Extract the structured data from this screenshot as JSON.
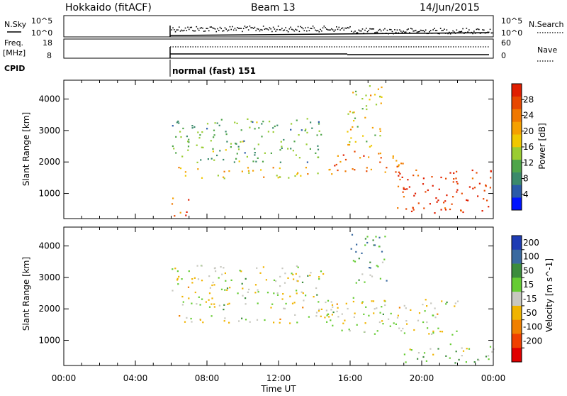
{
  "header": {
    "station": "Hokkaido (fitACF)",
    "beam": "Beam 13",
    "date": "14/Jun/2015"
  },
  "status_panels": {
    "nsky": {
      "label": "N.Sky",
      "tick_top": "10^5",
      "tick_bottom": "10^0",
      "right_label": "N.Search",
      "right_tick_top": "10^5",
      "right_tick_bottom": "10^0"
    },
    "freq": {
      "label_line1": "Freq.",
      "label_line2": "[MHz]",
      "tick_top": "18",
      "tick_bottom": "8",
      "right_label": "Nave",
      "right_tick_top": "60",
      "right_tick_bottom": "0"
    },
    "cpid": {
      "label": "CPID",
      "program": "normal (fast) 151"
    }
  },
  "chart_data": [
    {
      "type": "heatmap",
      "name": "power",
      "ylabel": "Slant Range [km]",
      "yticks": [
        "1000",
        "2000",
        "3000",
        "4000"
      ],
      "ylim": [
        200,
        4600
      ],
      "xlim": [
        0,
        24
      ],
      "colorbar_label": "Power [dB]",
      "colorbar_ticks": [
        "4",
        "8",
        "12",
        "16",
        "20",
        "24",
        "28"
      ],
      "colorbar_colors": [
        "#0014ff",
        "#2a5aa8",
        "#3b8a6b",
        "#4fa54a",
        "#9acd32",
        "#f0c800",
        "#f5a000",
        "#f07800",
        "#e84800",
        "#e01e00"
      ],
      "regions": [
        {
          "t0": 6.0,
          "t1": 15.0,
          "r0": 1500,
          "r1": 1850,
          "level": 0.62,
          "label_note": ""
        },
        {
          "t0": 6.0,
          "t1": 14.5,
          "r0": 2000,
          "r1": 3400,
          "level": 0.35
        },
        {
          "t0": 15.0,
          "t1": 19.0,
          "r0": 1700,
          "r1": 2400,
          "level": 0.78
        },
        {
          "t0": 18.5,
          "t1": 24.0,
          "r0": 400,
          "r1": 1800,
          "level": 0.9
        },
        {
          "t0": 15.8,
          "t1": 17.8,
          "r0": 2500,
          "r1": 4500,
          "level": 0.55
        },
        {
          "t0": 6.0,
          "t1": 7.0,
          "r0": 300,
          "r1": 900,
          "level": 0.85
        }
      ]
    },
    {
      "type": "heatmap",
      "name": "velocity",
      "ylabel": "Slant Range [km]",
      "yticks": [
        "1000",
        "2000",
        "3000",
        "4000"
      ],
      "ylim": [
        200,
        4600
      ],
      "xlim": [
        0,
        24
      ],
      "xticks": [
        "00:00",
        "04:00",
        "08:00",
        "12:00",
        "16:00",
        "20:00",
        "00:00"
      ],
      "xlabel": "Time UT",
      "colorbar_label": "Velocity [m s^-1]",
      "colorbar_ticks": [
        "200",
        "100",
        "50",
        "15",
        "-15",
        "-50",
        "-100",
        "-200"
      ],
      "colorbar_colors": [
        "#1e3cb4",
        "#3a6aa0",
        "#3c8c3c",
        "#66cc33",
        "#c8c8c0",
        "#f0b400",
        "#f08000",
        "#f04000",
        "#e00000"
      ],
      "regions": [
        {
          "t0": 6.0,
          "t1": 15.0,
          "r0": 1550,
          "r1": 1850,
          "level": 0.5
        },
        {
          "t0": 6.0,
          "t1": 14.5,
          "r0": 2000,
          "r1": 3400,
          "level": 0.5
        },
        {
          "t0": 14.0,
          "t1": 22.0,
          "r0": 1200,
          "r1": 2400,
          "level": 0.5
        },
        {
          "t0": 19.0,
          "t1": 24.0,
          "r0": 300,
          "r1": 900,
          "level": 0.4
        },
        {
          "t0": 16.0,
          "t1": 18.0,
          "r0": 2800,
          "r1": 4400,
          "level": 0.3
        }
      ]
    }
  ]
}
